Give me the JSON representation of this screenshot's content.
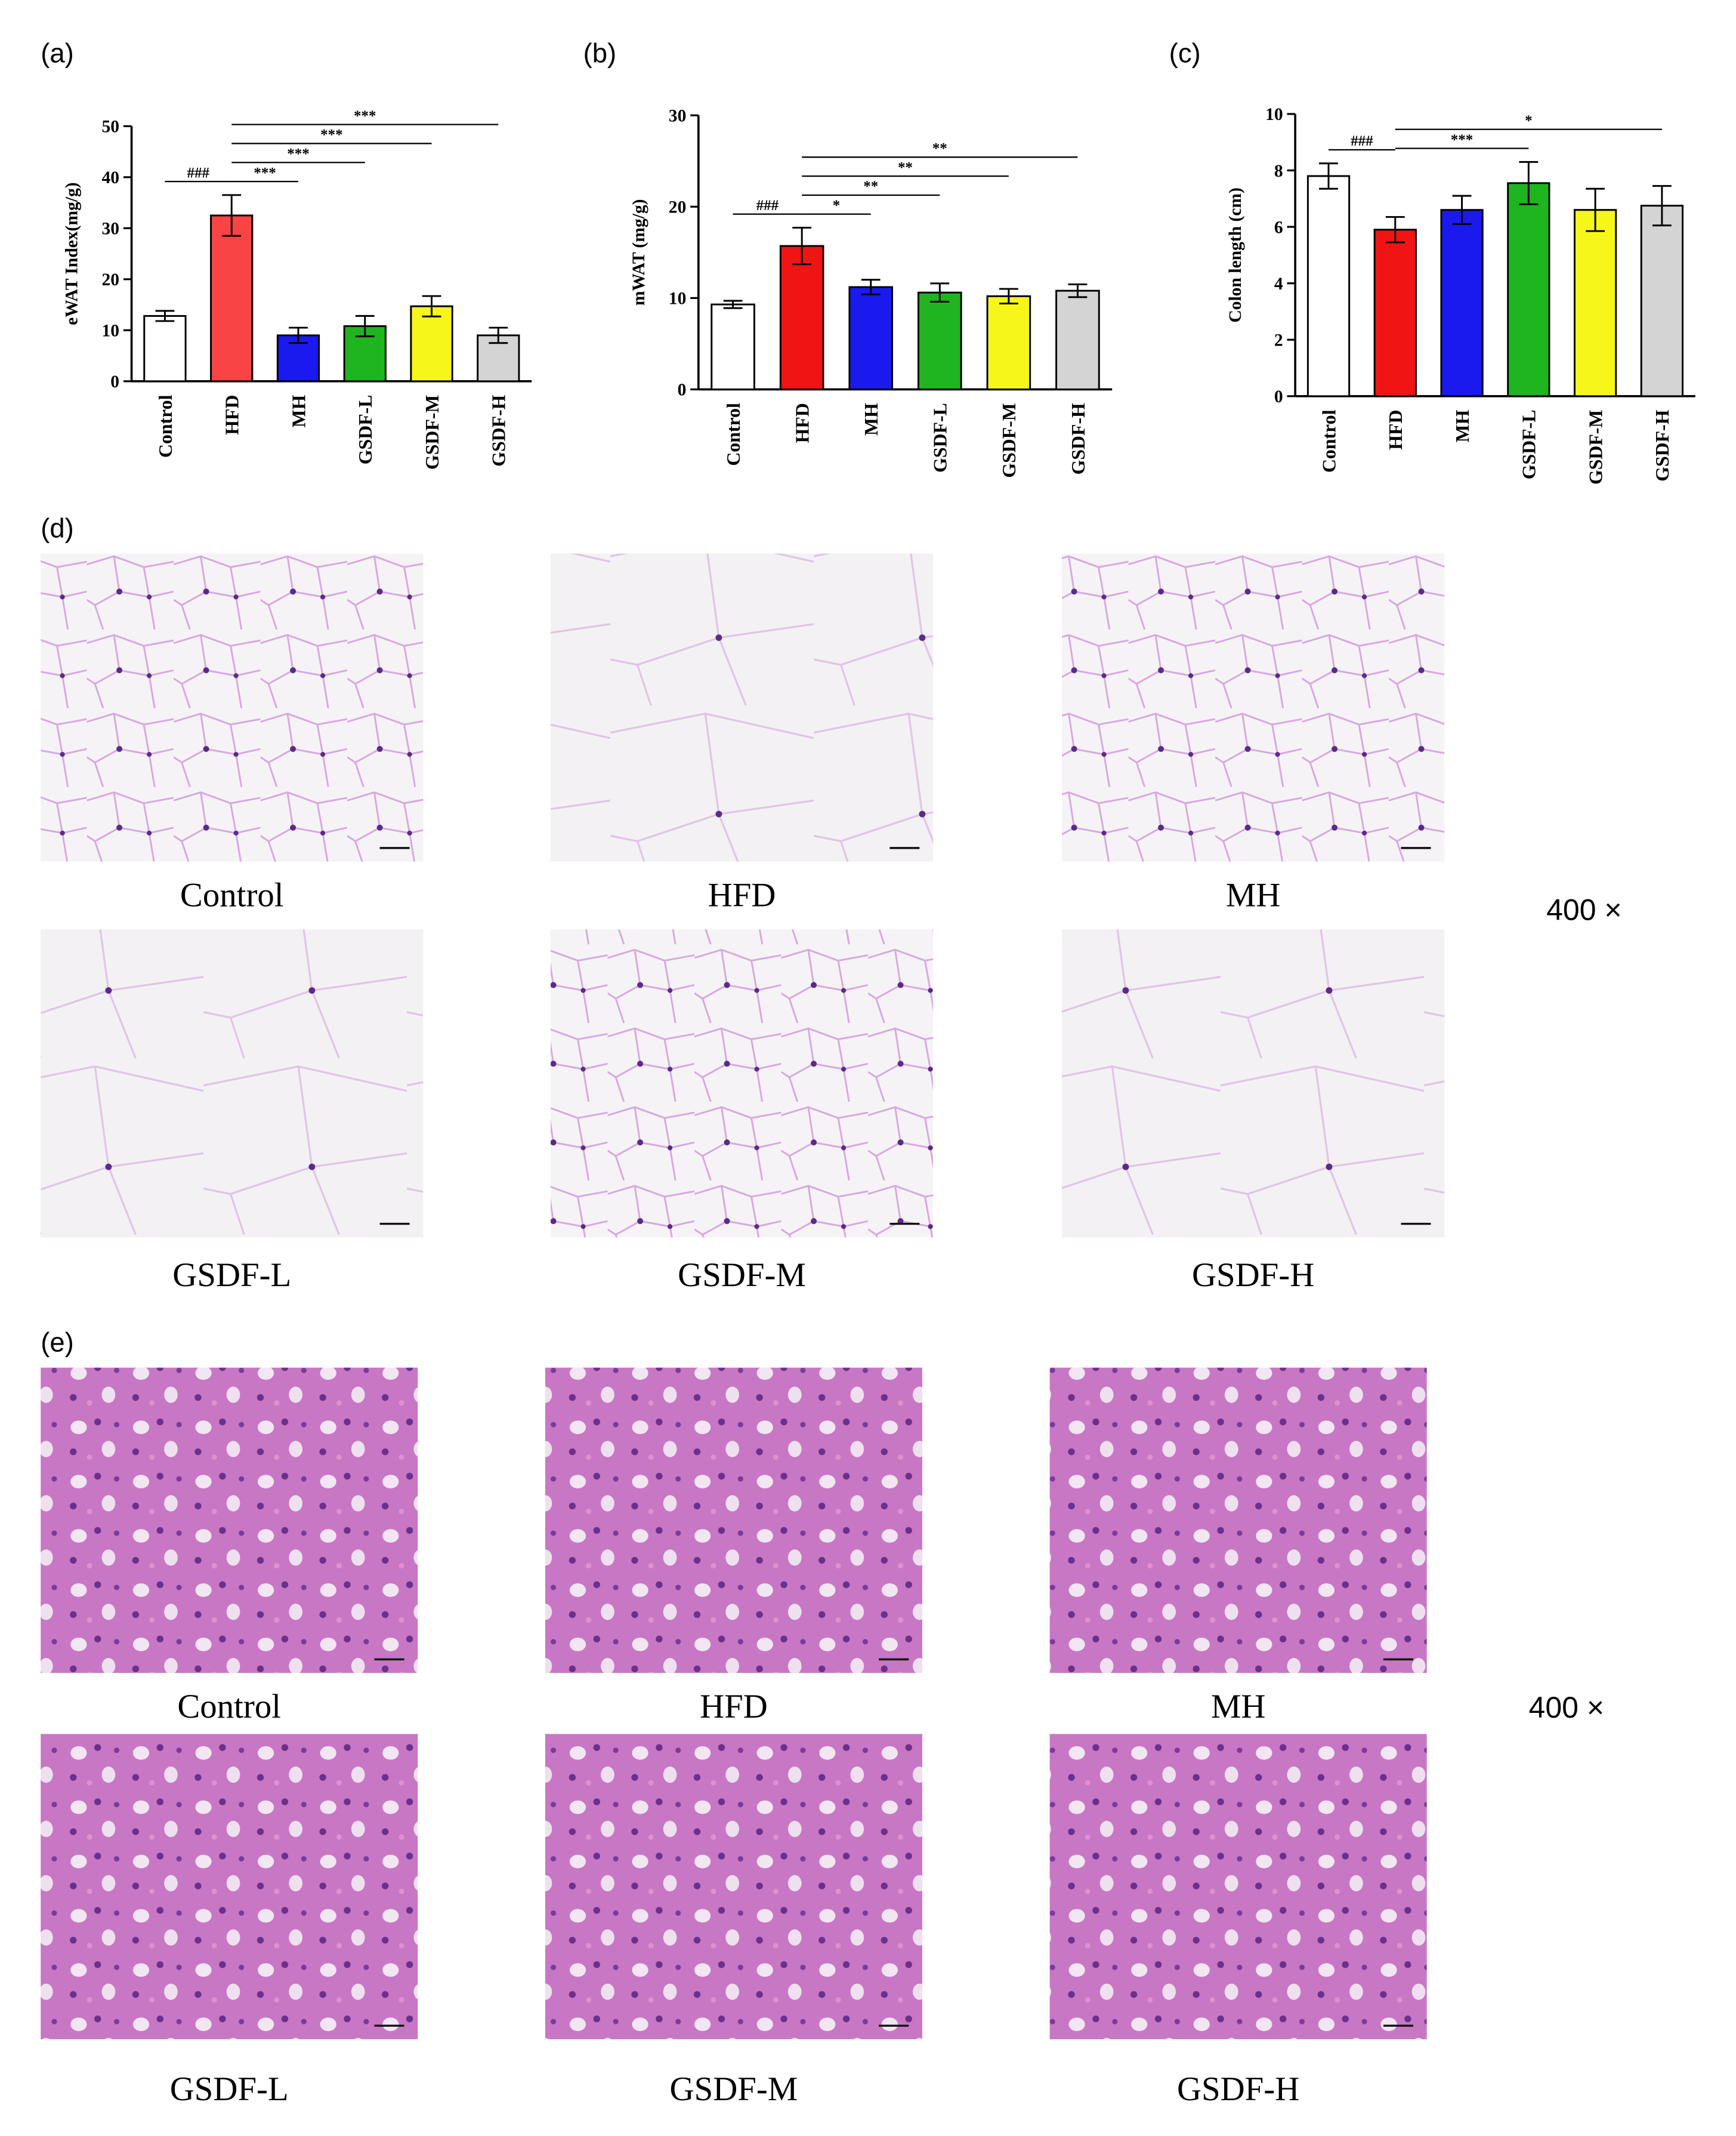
{
  "chart_data": [
    {
      "type": "bar",
      "panel_label": "(a)",
      "y_label": "eWAT Index(mg/g)",
      "categories": [
        "Control",
        "HFD",
        "MH",
        "GSDF-L",
        "GSDF-M",
        "GSDF-H"
      ],
      "series": [
        {
          "values": [
            12.8,
            32.5,
            9.0,
            10.8,
            14.7,
            9.0
          ],
          "errors": [
            1.0,
            4.0,
            1.5,
            2.0,
            2.0,
            1.5
          ],
          "colors": [
            "#ffffff",
            "#f84444",
            "#1a1aee",
            "#1fb51f",
            "#f6f61a",
            "#d4d4d4"
          ]
        }
      ],
      "ylim": [
        0,
        50
      ],
      "yticks": [
        0,
        10,
        20,
        30,
        40,
        50
      ],
      "annotations": [
        {
          "between": [
            0,
            1
          ],
          "label": "###"
        },
        {
          "between": [
            1,
            2
          ],
          "label": "***"
        },
        {
          "between": [
            1,
            3
          ],
          "label": "***"
        },
        {
          "between": [
            1,
            4
          ],
          "label": "***"
        },
        {
          "between": [
            1,
            5
          ],
          "label": "***"
        }
      ]
    },
    {
      "type": "bar",
      "panel_label": "(b)",
      "y_label": "mWAT (mg/g)",
      "categories": [
        "Control",
        "HFD",
        "MH",
        "GSDF-L",
        "GSDF-M",
        "GSDF-H"
      ],
      "series": [
        {
          "values": [
            9.3,
            15.7,
            11.2,
            10.6,
            10.2,
            10.8
          ],
          "errors": [
            0.4,
            2.0,
            0.8,
            1.0,
            0.8,
            0.7
          ],
          "colors": [
            "#ffffff",
            "#f01414",
            "#1a1aee",
            "#1fb51f",
            "#f6f61a",
            "#d4d4d4"
          ]
        }
      ],
      "ylim": [
        0,
        30
      ],
      "yticks": [
        0,
        10,
        20,
        30
      ],
      "annotations": [
        {
          "between": [
            0,
            1
          ],
          "label": "###"
        },
        {
          "between": [
            1,
            2
          ],
          "label": "*"
        },
        {
          "between": [
            1,
            3
          ],
          "label": "**"
        },
        {
          "between": [
            1,
            4
          ],
          "label": "**"
        },
        {
          "between": [
            1,
            5
          ],
          "label": "**"
        }
      ]
    },
    {
      "type": "bar",
      "panel_label": "(c)",
      "y_label": "Colon length (cm)",
      "categories": [
        "Control",
        "HFD",
        "MH",
        "GSDF-L",
        "GSDF-M",
        "GSDF-H"
      ],
      "series": [
        {
          "values": [
            7.8,
            5.9,
            6.6,
            7.55,
            6.6,
            6.75
          ],
          "errors": [
            0.45,
            0.45,
            0.5,
            0.75,
            0.75,
            0.7
          ],
          "colors": [
            "#ffffff",
            "#f01414",
            "#1a1aee",
            "#1fb51f",
            "#f6f61a",
            "#d4d4d4"
          ]
        }
      ],
      "ylim": [
        0,
        10
      ],
      "yticks": [
        0,
        2,
        4,
        6,
        8,
        10
      ],
      "annotations": [
        {
          "between": [
            0,
            1
          ],
          "label": "###"
        },
        {
          "between": [
            1,
            3
          ],
          "label": "***"
        },
        {
          "between": [
            1,
            5
          ],
          "label": "*"
        }
      ]
    }
  ],
  "adipose_panel": {
    "label": "(d)",
    "images": [
      "Control",
      "HFD",
      "MH",
      "GSDF-L",
      "GSDF-M",
      "GSDF-H"
    ],
    "magnification": "400 ×"
  },
  "colon_panel": {
    "label": "(e)",
    "images": [
      "Control",
      "HFD",
      "MH",
      "GSDF-L",
      "GSDF-M",
      "GSDF-H"
    ],
    "magnification": "400 ×"
  }
}
